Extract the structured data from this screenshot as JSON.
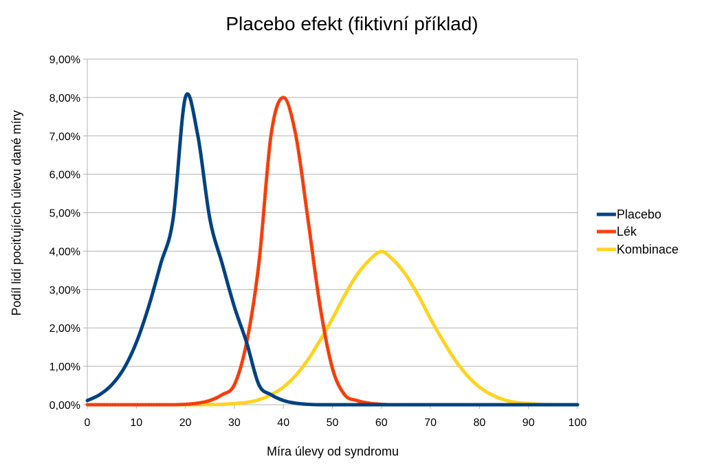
{
  "chart_data": {
    "type": "line",
    "title": "Placebo efekt (fiktivní příklad)",
    "xlabel": "Míra úlevy od syndromu",
    "ylabel": "Podíl lidí pociťujících úlevu dané míry",
    "xlim": [
      0,
      100
    ],
    "ylim": [
      0,
      0.09
    ],
    "x_ticks": [
      "0",
      "10",
      "20",
      "30",
      "40",
      "50",
      "60",
      "70",
      "80",
      "90",
      "100"
    ],
    "y_ticks": [
      "0,00%",
      "1,00%",
      "2,00%",
      "3,00%",
      "4,00%",
      "5,00%",
      "6,00%",
      "7,00%",
      "8,00%",
      "9,00%"
    ],
    "grid": true,
    "legend_position": "right",
    "x": [
      0,
      2.5,
      5,
      7.5,
      10,
      12.5,
      15,
      17.5,
      20,
      22.5,
      25,
      27.5,
      30,
      32.5,
      35,
      37.5,
      40,
      42.5,
      45,
      47.5,
      50,
      52.5,
      55,
      57.5,
      60,
      62.5,
      65,
      67.5,
      70,
      72.5,
      75,
      77.5,
      80,
      82.5,
      85,
      87.5,
      90,
      92.5,
      95,
      97.5,
      100
    ],
    "series": [
      {
        "name": "Placebo",
        "color": "#004586",
        "values": [
          0.0011,
          0.0026,
          0.0052,
          0.0095,
          0.0162,
          0.0255,
          0.0368,
          0.0484,
          0.08,
          0.0704,
          0.0484,
          0.0368,
          0.0255,
          0.0162,
          0.0052,
          0.0026,
          0.0011,
          0.0004,
          0.0001,
          0,
          0,
          0,
          0,
          0,
          0,
          0,
          0,
          0,
          0,
          0,
          0,
          0,
          0,
          0,
          0,
          0,
          0,
          0,
          0,
          0,
          0
        ]
      },
      {
        "name": "Lék",
        "color": "#ff420e",
        "values": [
          0,
          0,
          0,
          0,
          0,
          0,
          0,
          0,
          0.0001,
          0.0004,
          0.0011,
          0.0026,
          0.0052,
          0.0162,
          0.0368,
          0.0704,
          0.08,
          0.0704,
          0.0484,
          0.0255,
          0.0095,
          0.0026,
          0.0011,
          0.0004,
          0.0001,
          0,
          0,
          0,
          0,
          0,
          0,
          0,
          0,
          0,
          0,
          0,
          0,
          0,
          0,
          0,
          0
        ]
      },
      {
        "name": "Kombinace",
        "color": "#ffd320",
        "values": [
          0,
          0,
          0,
          0,
          0,
          0,
          0,
          0,
          0,
          0,
          4e-05,
          0.0001,
          0.0003,
          0.0006,
          0.0013,
          0.0026,
          0.0046,
          0.0076,
          0.0117,
          0.0168,
          0.0224,
          0.0285,
          0.0338,
          0.0376,
          0.0399,
          0.0376,
          0.0338,
          0.0285,
          0.0224,
          0.0168,
          0.0117,
          0.0076,
          0.0046,
          0.0026,
          0.0013,
          0.0006,
          0.0003,
          0.0001,
          4e-05,
          0,
          0
        ]
      }
    ]
  }
}
